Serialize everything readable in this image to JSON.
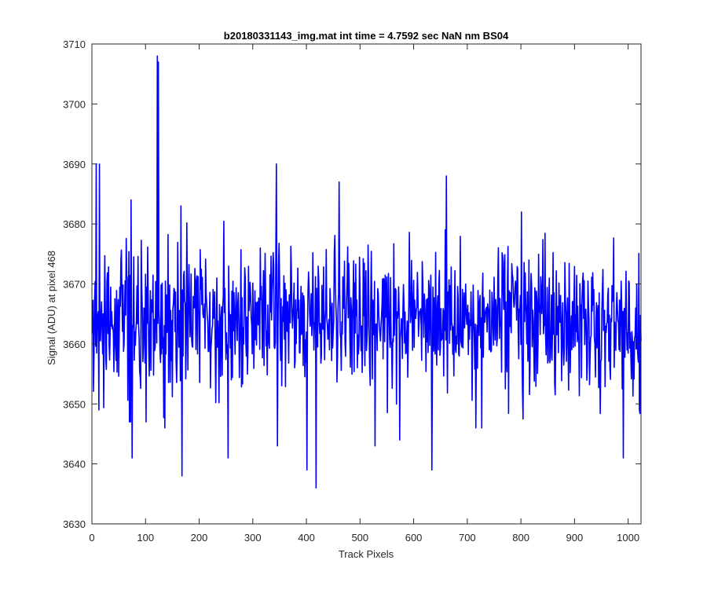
{
  "figure": {
    "background": "#ffffff",
    "axes_color": "#262626",
    "line_color": "#0000ff"
  },
  "chart_data": {
    "type": "line",
    "title": "b20180331143_img.mat int time = 4.7592 sec  NaN nm BS04",
    "xlabel": "Track Pixels",
    "ylabel": "Signal (ADU) at pixel 468",
    "xlim": [
      0,
      1024
    ],
    "ylim": [
      3630,
      3710
    ],
    "xticks": [
      0,
      100,
      200,
      300,
      400,
      500,
      600,
      700,
      800,
      900,
      1000
    ],
    "yticks": [
      3630,
      3640,
      3650,
      3660,
      3670,
      3680,
      3690,
      3700,
      3710
    ],
    "grid": false,
    "box": true,
    "noise_mean": 3664,
    "noise_std": 6,
    "n_points": 1024,
    "series": [
      {
        "color": "#0000ff",
        "spikes": [
          {
            "x": 7,
            "y": 3690
          },
          {
            "x": 13,
            "y": 3690
          },
          {
            "x": 12,
            "y": 3649
          },
          {
            "x": 69,
            "y": 3647
          },
          {
            "x": 71,
            "y": 3647
          },
          {
            "x": 72,
            "y": 3684
          },
          {
            "x": 74,
            "y": 3641
          },
          {
            "x": 100,
            "y": 3647
          },
          {
            "x": 121,
            "y": 3708
          },
          {
            "x": 123,
            "y": 3707
          },
          {
            "x": 165,
            "y": 3683
          },
          {
            "x": 167,
            "y": 3638
          },
          {
            "x": 253,
            "y": 3641
          },
          {
            "x": 345,
            "y": 3643
          },
          {
            "x": 343,
            "y": 3690
          },
          {
            "x": 400,
            "y": 3639
          },
          {
            "x": 417,
            "y": 3636
          },
          {
            "x": 460,
            "y": 3687
          },
          {
            "x": 527,
            "y": 3643
          },
          {
            "x": 573,
            "y": 3644
          },
          {
            "x": 633,
            "y": 3639
          },
          {
            "x": 660,
            "y": 3688
          },
          {
            "x": 800,
            "y": 3682
          },
          {
            "x": 990,
            "y": 3641
          },
          {
            "x": 1020,
            "y": 3649
          }
        ]
      }
    ]
  }
}
